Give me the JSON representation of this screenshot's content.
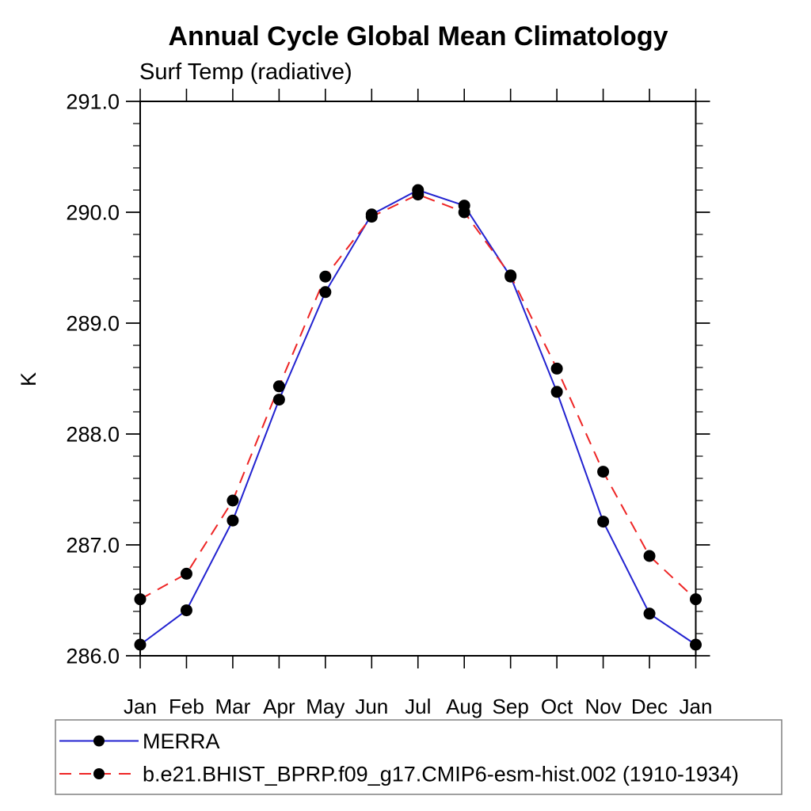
{
  "chart_data": {
    "type": "line",
    "title": "Annual Cycle Global Mean Climatology",
    "subtitle": "Surf Temp (radiative)",
    "xlabel": "",
    "ylabel": "K",
    "categories": [
      "Jan",
      "Feb",
      "Mar",
      "Apr",
      "May",
      "Jun",
      "Jul",
      "Aug",
      "Sep",
      "Oct",
      "Nov",
      "Dec",
      "Jan"
    ],
    "ylim": [
      286.0,
      291.0
    ],
    "y_major_ticks": [
      "286.0",
      "287.0",
      "288.0",
      "289.0",
      "290.0",
      "291.0"
    ],
    "y_minor_step": 0.2,
    "grid": false,
    "legend_position": "bottom-left-box",
    "frame_color": "#000000",
    "marker_color": "#000000",
    "legend_border_color": "#808080",
    "series": [
      {
        "name": "MERRA",
        "color": "#2222d0",
        "style": "solid",
        "marker": "filled-circle",
        "values": [
          286.1,
          286.41,
          287.22,
          288.31,
          289.28,
          289.98,
          290.2,
          290.06,
          289.42,
          288.38,
          287.21,
          286.38,
          286.1
        ]
      },
      {
        "name": "b.e21.BHIST_BPRP.f09_g17.CMIP6-esm-hist.002 (1910-1934)",
        "color": "#ee2525",
        "style": "dashed",
        "marker": "filled-circle",
        "values": [
          286.51,
          286.74,
          287.4,
          288.43,
          289.42,
          289.96,
          290.16,
          290.0,
          289.43,
          288.59,
          287.66,
          286.9,
          286.51
        ]
      }
    ]
  }
}
